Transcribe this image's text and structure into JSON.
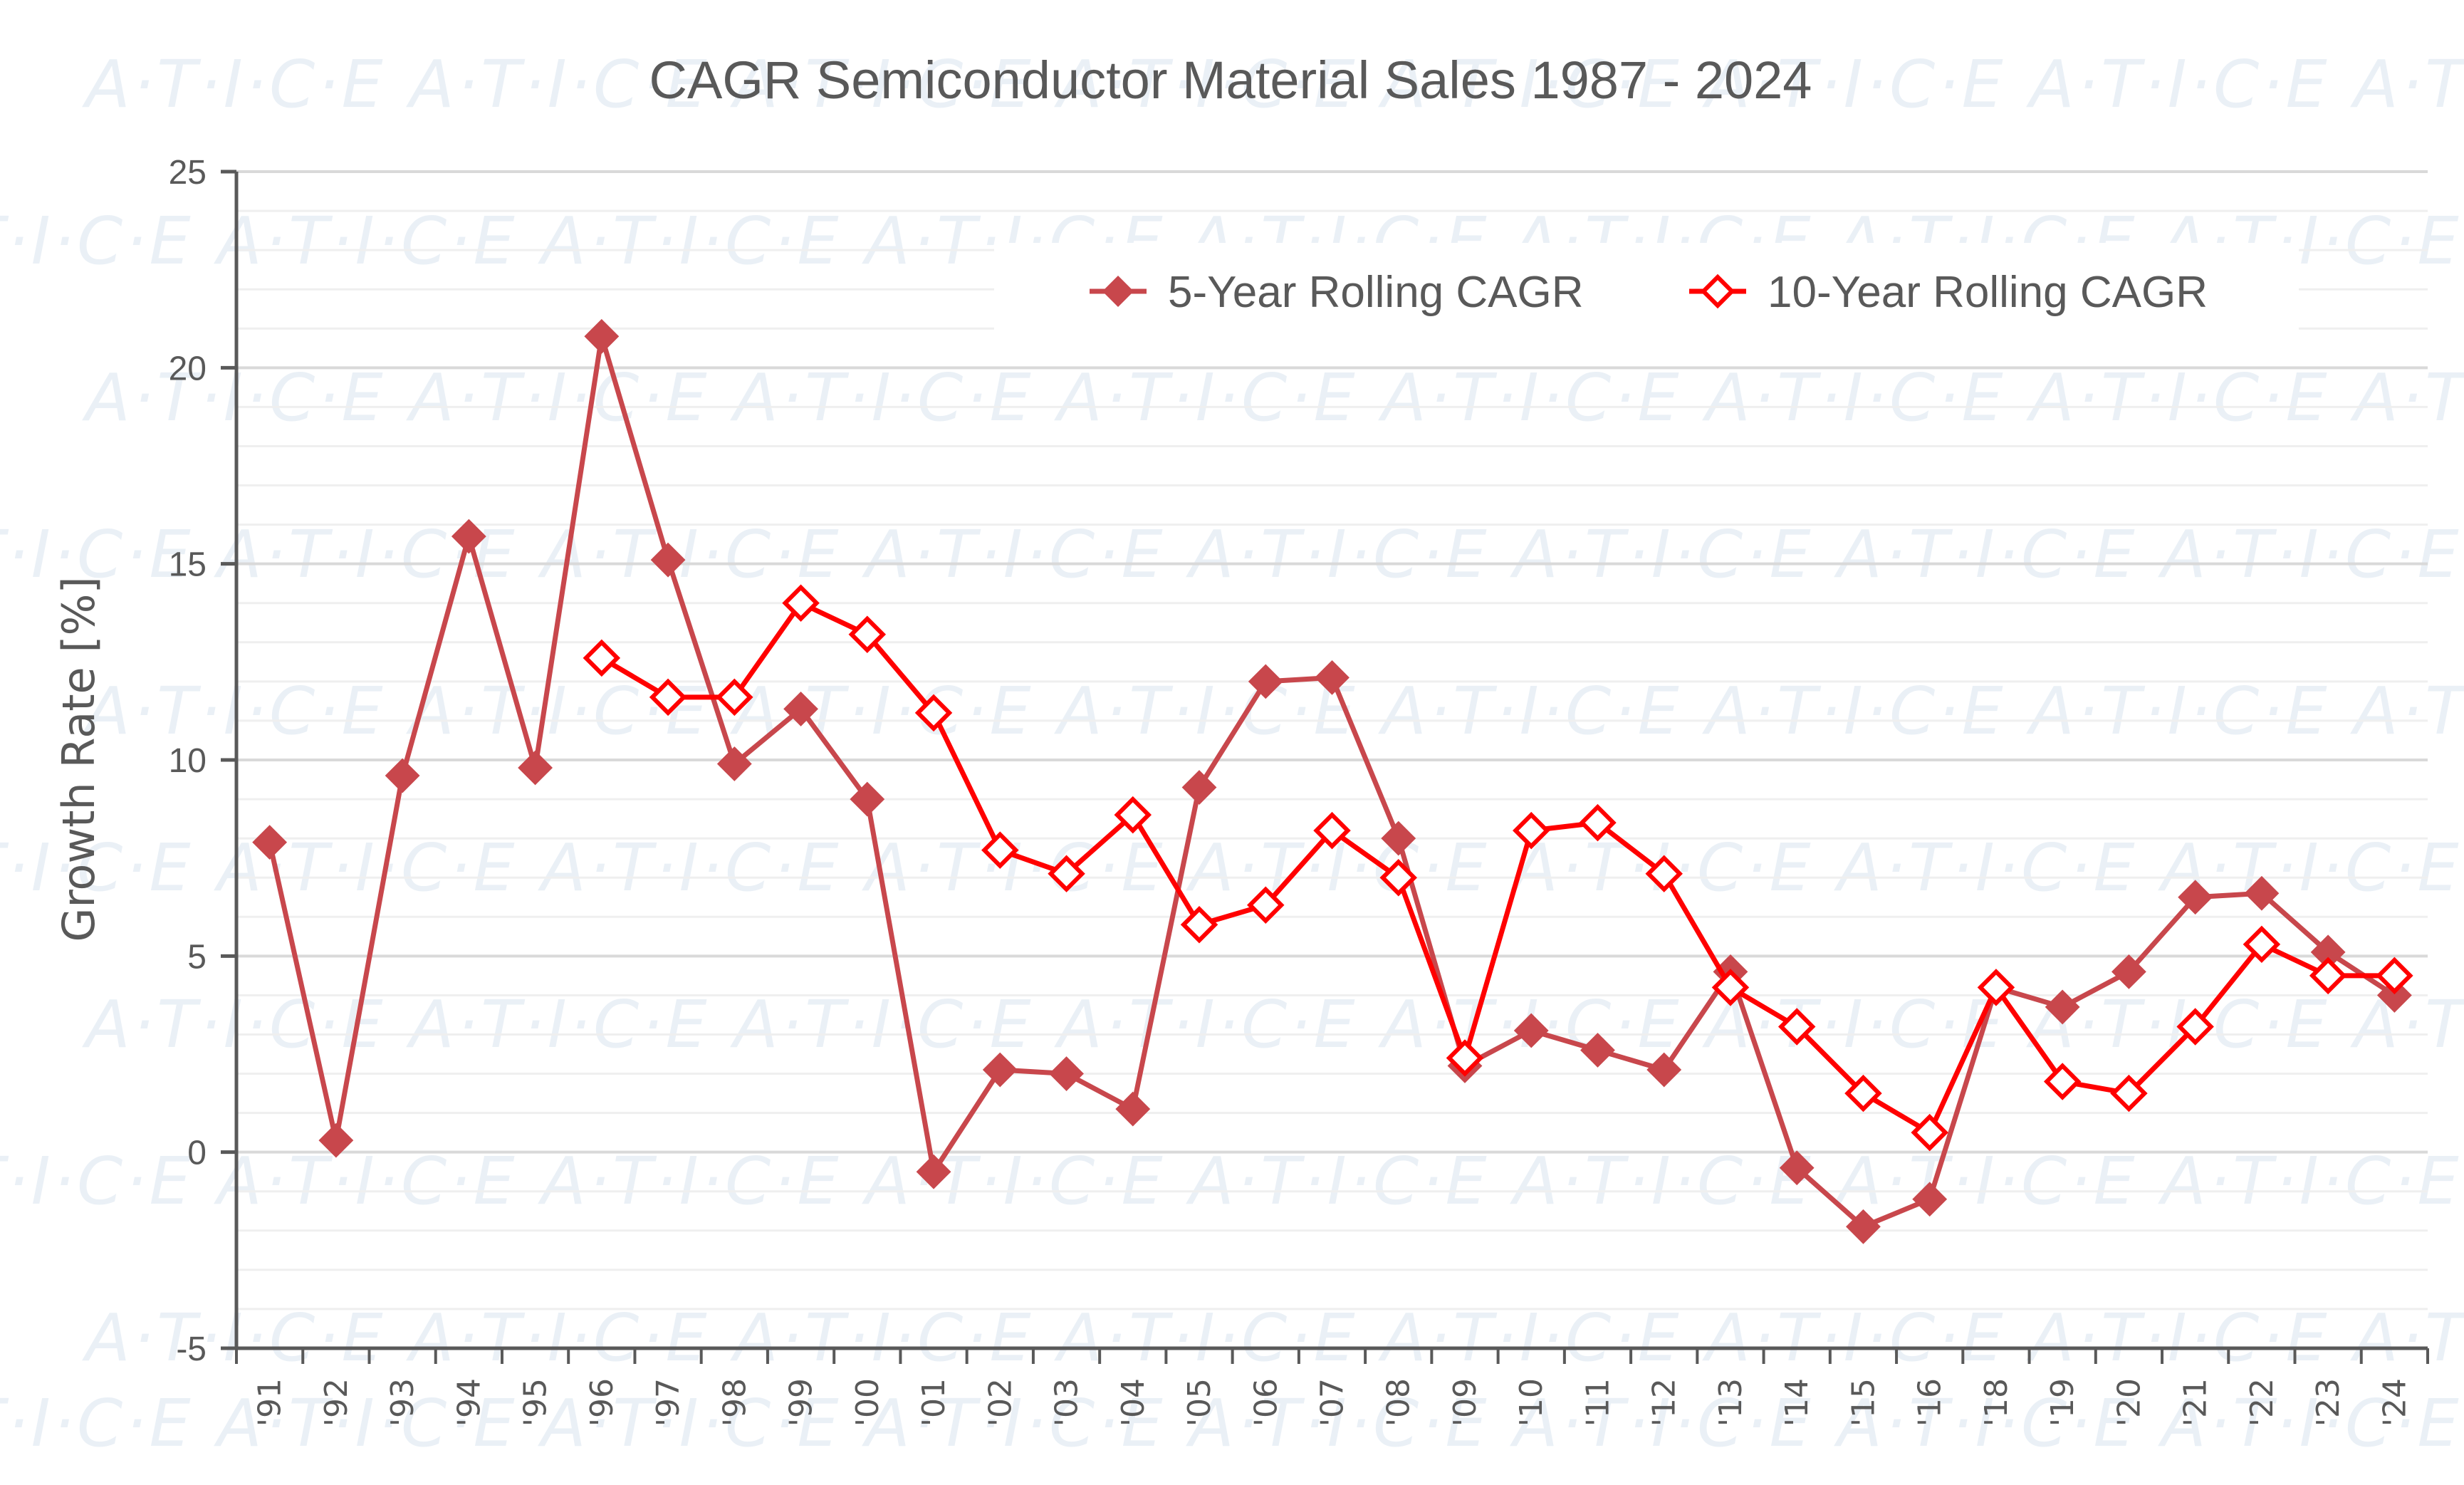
{
  "chart_data": {
    "type": "line",
    "title": "CAGR Semiconductor Material Sales 1987 - 2024",
    "xlabel": "",
    "ylabel": "Growth Rate [%]",
    "ylim": [
      -5,
      25
    ],
    "yticks": [
      -5,
      0,
      5,
      10,
      15,
      20,
      25
    ],
    "ytick_labels": [
      "-5",
      "0",
      "5",
      "10",
      "15",
      "20",
      "25"
    ],
    "minor_grid_step": 1,
    "grid": true,
    "legend_position": "top-right",
    "watermark": "A·T·I·C·E",
    "categories": [
      "'91",
      "'92",
      "'93",
      "'94",
      "'95",
      "'96",
      "'97",
      "'98",
      "'99",
      "'00",
      "'01",
      "'02",
      "'03",
      "'04",
      "'05",
      "'06",
      "'07",
      "'08",
      "'09",
      "'10",
      "'11",
      "'12",
      "'13",
      "'14",
      "'15",
      "'16",
      "'18",
      "'19",
      "'20",
      "'21",
      "'22",
      "'23",
      "'24"
    ],
    "series": [
      {
        "name": "5-Year Rolling CAGR",
        "color": "#c8474c",
        "marker": "filled-diamond",
        "values": [
          7.9,
          0.3,
          9.6,
          15.7,
          9.8,
          20.8,
          15.1,
          9.9,
          11.3,
          9.0,
          -0.5,
          2.1,
          2.0,
          1.1,
          9.3,
          12.0,
          12.1,
          8.0,
          2.2,
          3.1,
          2.6,
          2.1,
          4.6,
          -0.4,
          -1.9,
          -1.2,
          4.2,
          3.7,
          4.6,
          6.5,
          6.6,
          5.1,
          4.0
        ]
      },
      {
        "name": "10-Year Rolling CAGR",
        "color": "#ff0000",
        "marker": "hollow-diamond",
        "values": [
          null,
          null,
          null,
          null,
          null,
          12.6,
          11.6,
          11.6,
          14.0,
          13.2,
          11.2,
          7.7,
          7.1,
          8.6,
          5.8,
          6.3,
          8.2,
          7.0,
          2.4,
          8.2,
          8.4,
          7.1,
          4.2,
          3.2,
          1.5,
          0.5,
          4.2,
          1.8,
          1.5,
          3.2,
          5.3,
          4.5,
          4.5
        ]
      }
    ]
  }
}
